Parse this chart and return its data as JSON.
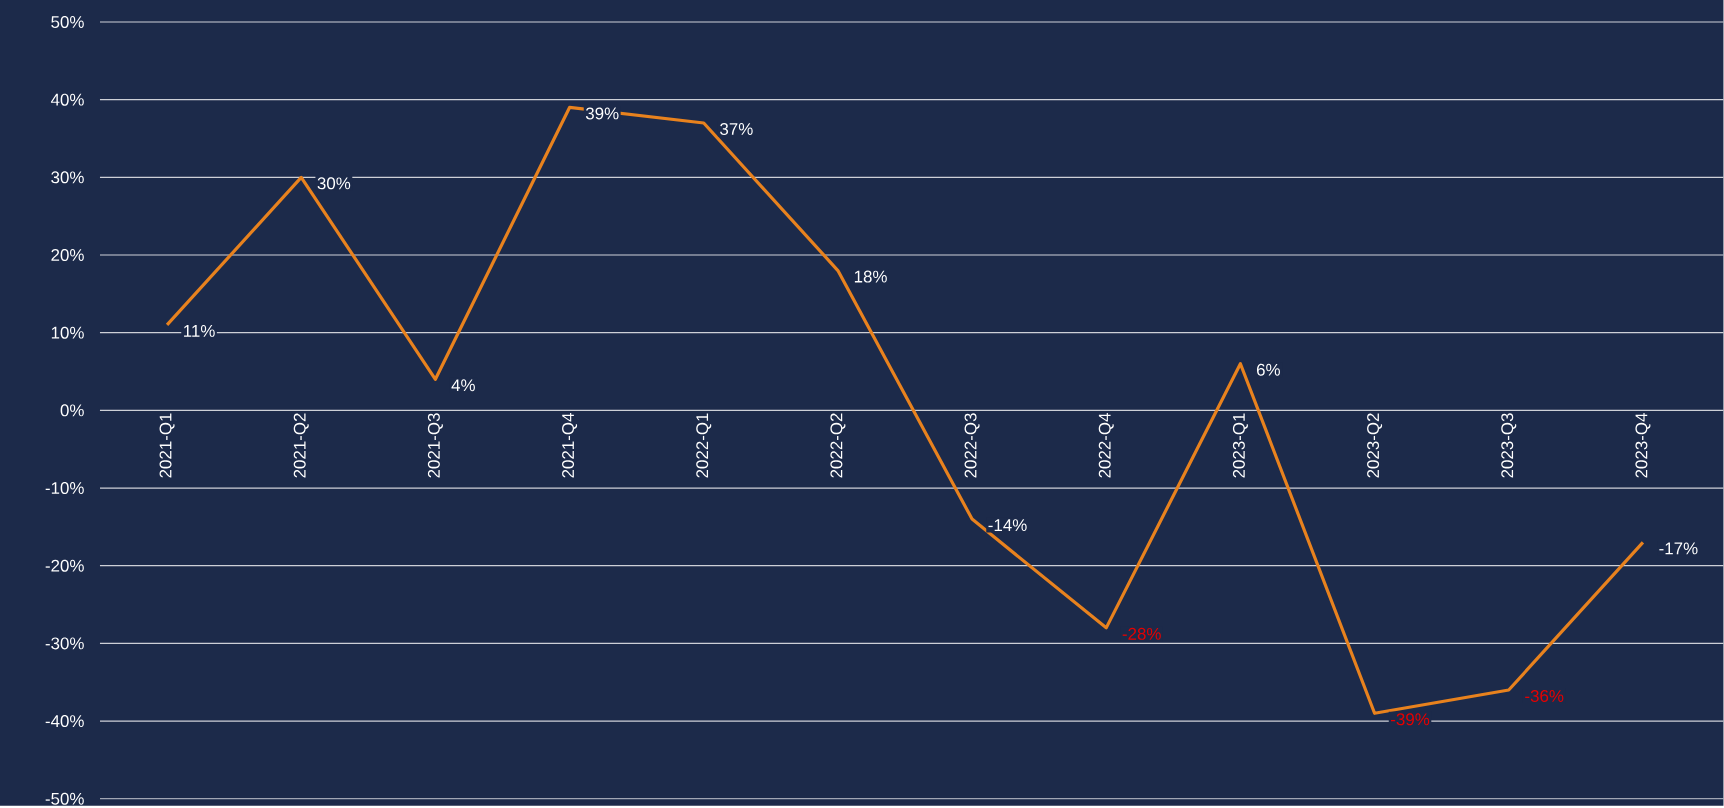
{
  "chart_data": {
    "type": "line",
    "categories": [
      "2021-Q1",
      "2021-Q2",
      "2021-Q3",
      "2021-Q4",
      "2022-Q1",
      "2022-Q2",
      "2022-Q3",
      "2022-Q4",
      "2023-Q1",
      "2023-Q2",
      "2023-Q3",
      "2023-Q4"
    ],
    "values": [
      11,
      30,
      4,
      39,
      37,
      18,
      -14,
      -28,
      6,
      -39,
      -36,
      -17
    ],
    "value_labels": [
      "11%",
      "30%",
      "4%",
      "39%",
      "37%",
      "18%",
      "-14%",
      "-28%",
      "6%",
      "-39%",
      "-36%",
      "-17%"
    ],
    "color": "#e8821e",
    "ylim": [
      -50,
      50
    ],
    "yticks": [
      {
        "value": -50,
        "label": "-50%"
      },
      {
        "value": -40,
        "label": "-40%"
      },
      {
        "value": -30,
        "label": "-30%"
      },
      {
        "value": -20,
        "label": "-20%"
      },
      {
        "value": -10,
        "label": "-10%"
      },
      {
        "value": 0,
        "label": "0%"
      },
      {
        "value": 10,
        "label": "10%"
      },
      {
        "value": 20,
        "label": "20%"
      },
      {
        "value": 30,
        "label": "30%"
      },
      {
        "value": 40,
        "label": "40%"
      },
      {
        "value": 50,
        "label": "50%"
      }
    ],
    "grid": "y",
    "marker": "none",
    "line_style": "solid"
  }
}
